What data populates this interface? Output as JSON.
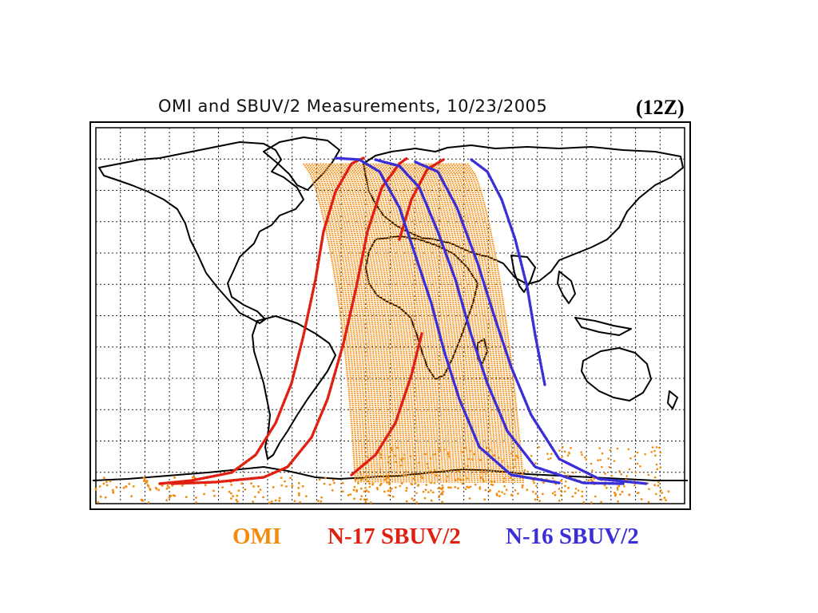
{
  "title": "OMI and SBUV/2 Measurements,  10/23/2005",
  "time_tag": "(12Z)",
  "legend": [
    {
      "label": "OMI",
      "color": "#f28c0f"
    },
    {
      "label": "N-17 SBUV/2",
      "color": "#e02010"
    },
    {
      "label": "N-16 SBUV/2",
      "color": "#3a2fd6"
    }
  ],
  "map": {
    "projection": "cylindrical equidistant",
    "grid_spacing_deg": 15,
    "grid_style": "dotted"
  },
  "tracks": {
    "omi_swath": {
      "color": "#f28c0f",
      "lon_range": [
        -88,
        40
      ],
      "lat_range": [
        -90,
        81
      ]
    },
    "n17": {
      "color": "#e02010",
      "orbits": 3
    },
    "n16": {
      "color": "#3a2fd6",
      "orbits": 4
    }
  }
}
